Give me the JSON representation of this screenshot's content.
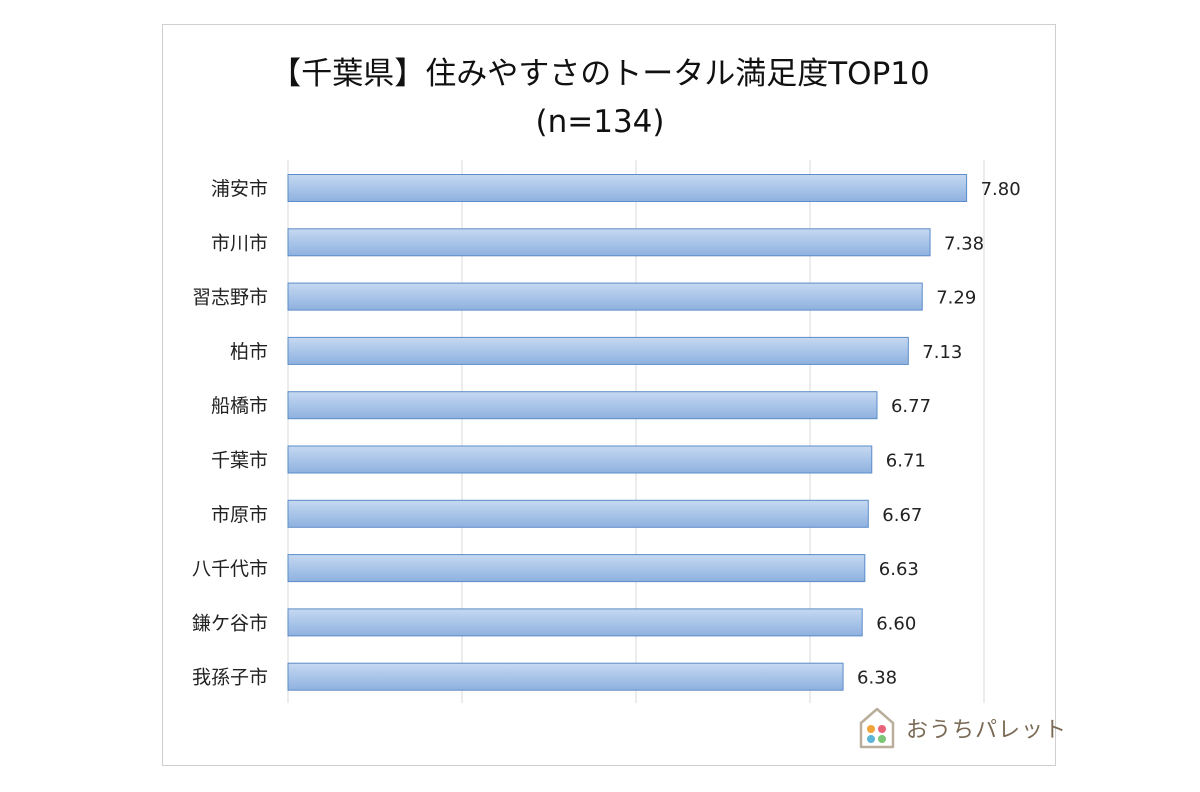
{
  "chart_data": {
    "type": "bar",
    "orientation": "horizontal",
    "title_line1": "【千葉県】住みやすさのトータル満足度TOP10",
    "title_line2": "(n=134)",
    "categories": [
      "浦安市",
      "市川市",
      "習志野市",
      "柏市",
      "船橋市",
      "千葉市",
      "市原市",
      "八千代市",
      "鎌ケ谷市",
      "我孫子市"
    ],
    "values": [
      7.8,
      7.38,
      7.29,
      7.13,
      6.77,
      6.71,
      6.67,
      6.63,
      6.6,
      6.38
    ],
    "value_labels": [
      "7.80",
      "7.38",
      "7.29",
      "7.13",
      "6.77",
      "6.71",
      "6.67",
      "6.63",
      "6.60",
      "6.38"
    ],
    "xlim": [
      0,
      8
    ],
    "grid": true,
    "bar_color": "#a7c4e8",
    "bar_border_color": "#5b8cc9"
  },
  "logo": {
    "text": "おうちパレット",
    "icon": "house-palette-icon"
  }
}
